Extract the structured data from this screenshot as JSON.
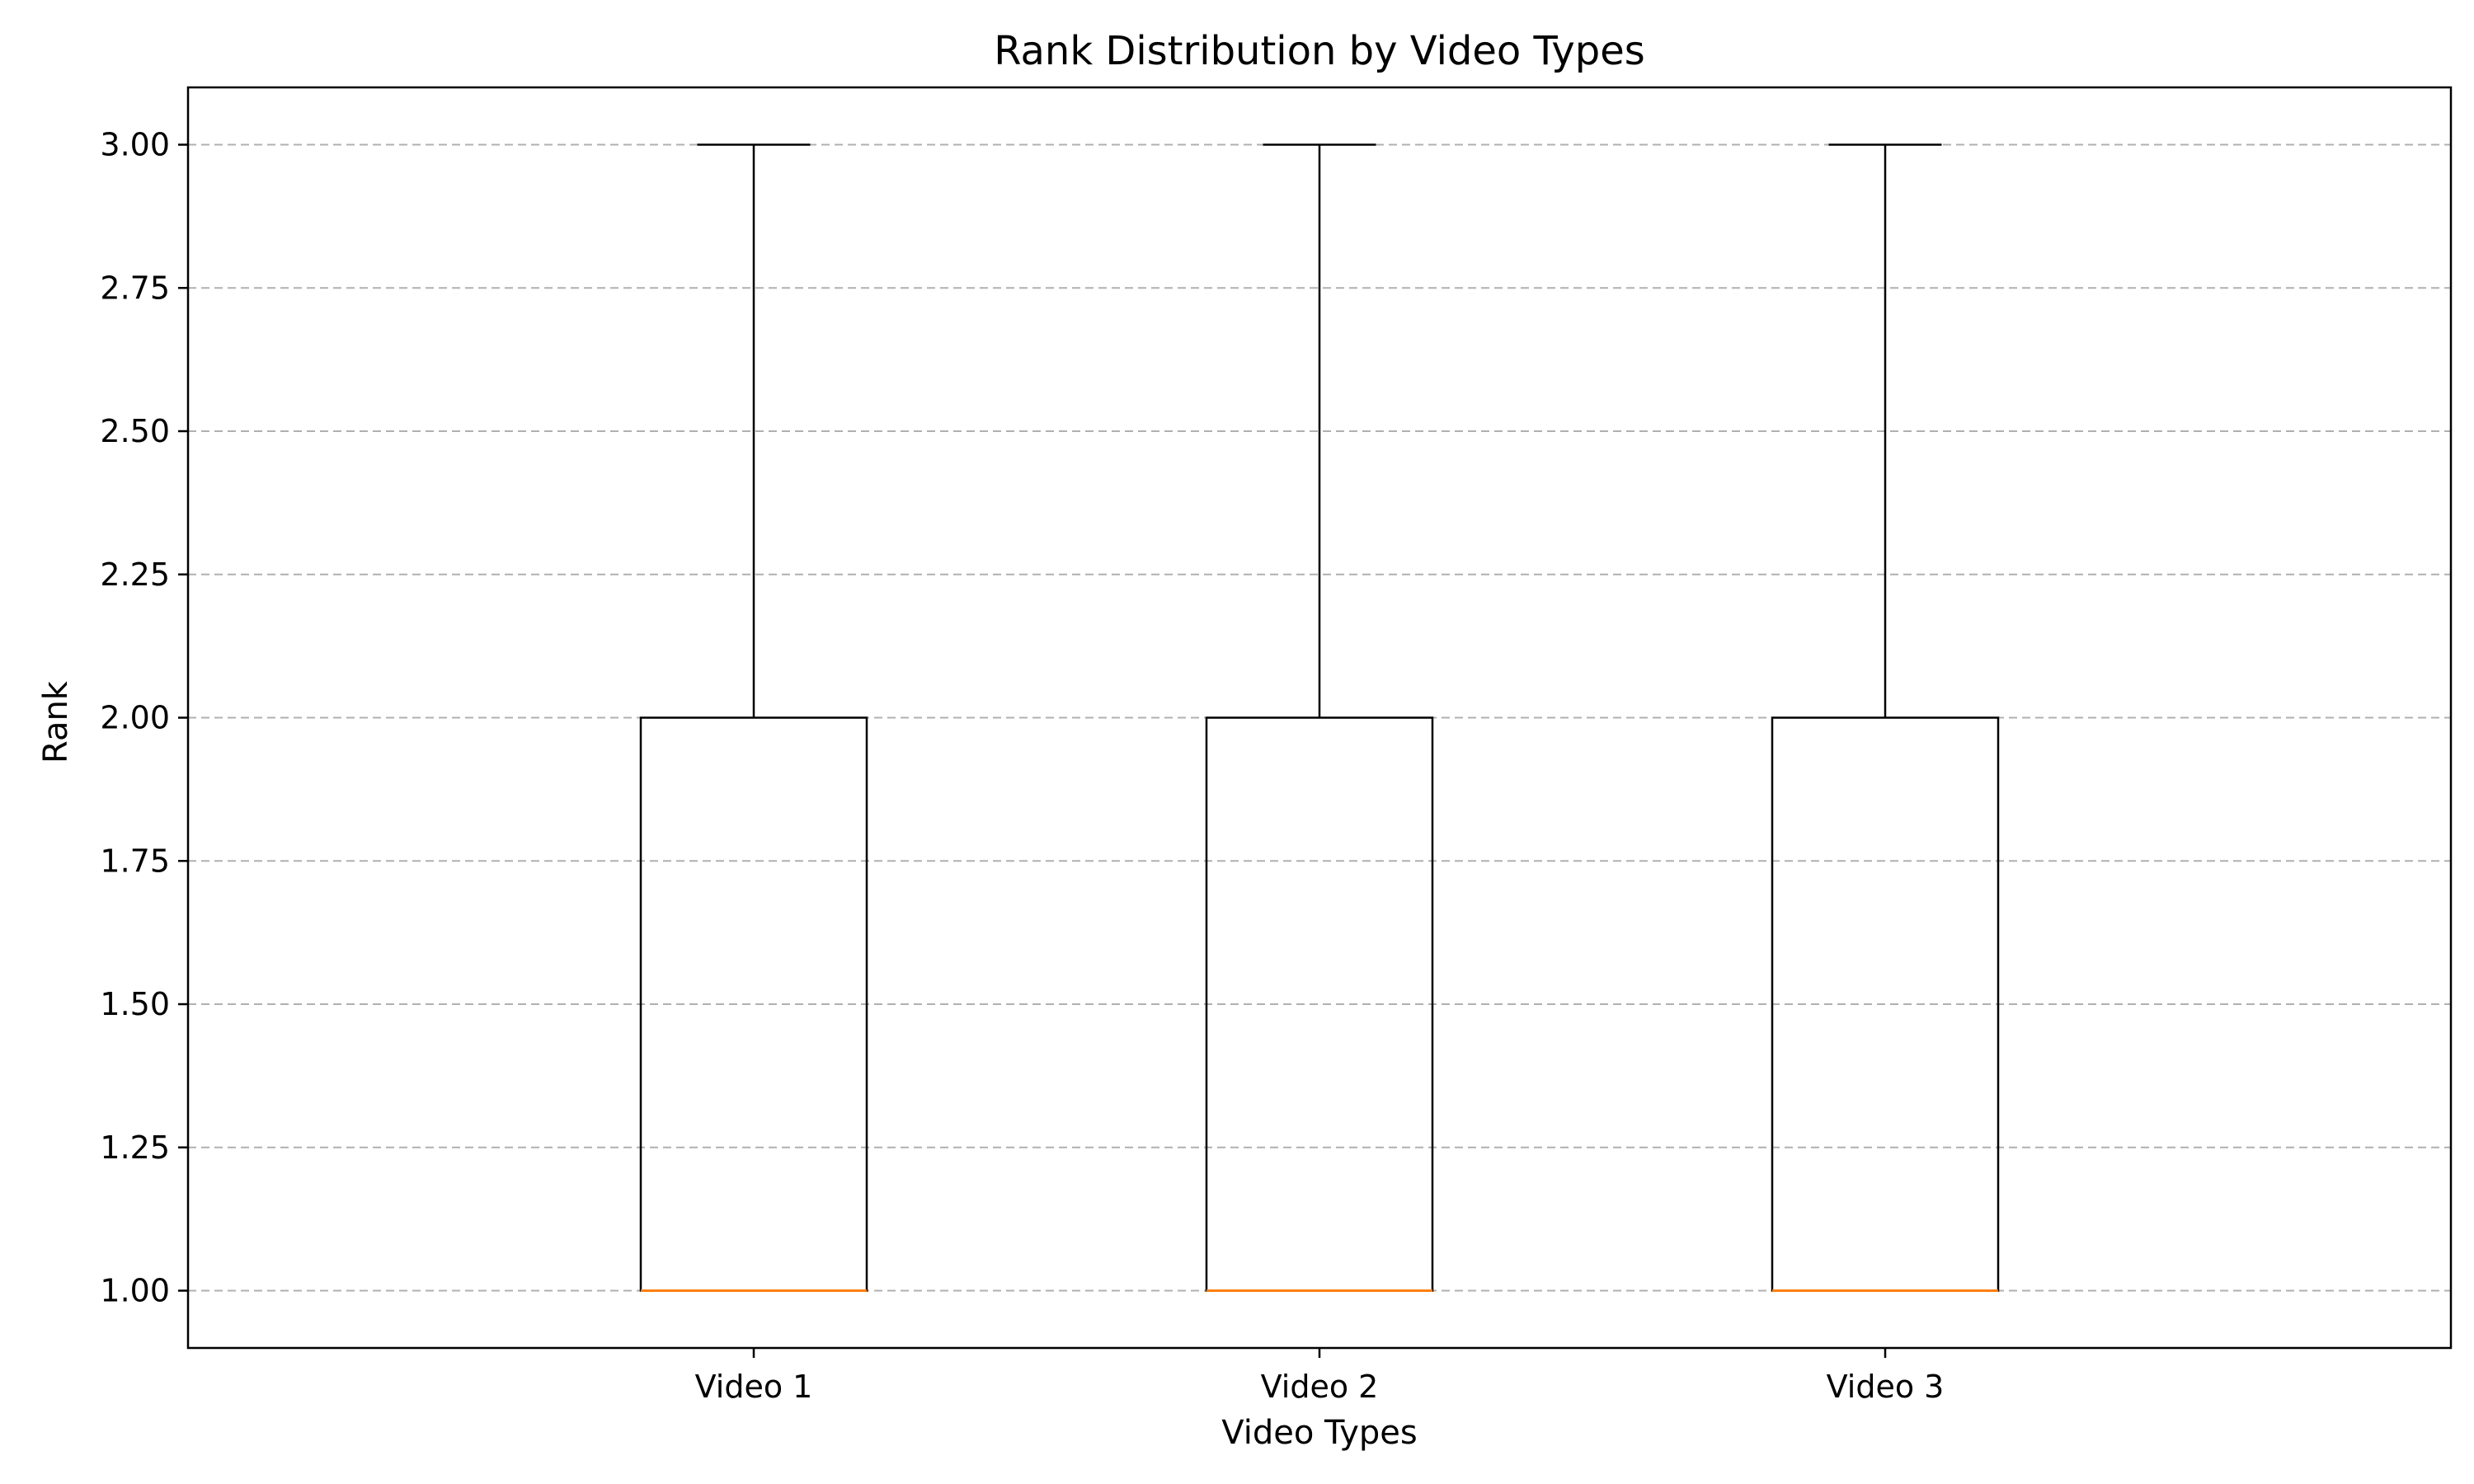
{
  "chart_data": {
    "type": "box",
    "title": "Rank Distribution by Video Types",
    "xlabel": "Video Types",
    "ylabel": "Rank",
    "ylim": [
      0.9,
      3.1
    ],
    "yticks": [
      "1.00",
      "1.25",
      "1.50",
      "1.75",
      "2.00",
      "2.25",
      "2.50",
      "2.75",
      "3.00"
    ],
    "ytick_values": [
      1.0,
      1.25,
      1.5,
      1.75,
      2.0,
      2.25,
      2.5,
      2.75,
      3.0
    ],
    "grid": "y-dashed",
    "categories": [
      "Video 1",
      "Video 2",
      "Video 3"
    ],
    "boxes": [
      {
        "label": "Video 1",
        "whisker_low": 1.0,
        "q1": 1.0,
        "median": 1.0,
        "q3": 2.0,
        "whisker_high": 3.0
      },
      {
        "label": "Video 2",
        "whisker_low": 1.0,
        "q1": 1.0,
        "median": 1.0,
        "q3": 2.0,
        "whisker_high": 3.0
      },
      {
        "label": "Video 3",
        "whisker_low": 1.0,
        "q1": 1.0,
        "median": 1.0,
        "q3": 2.0,
        "whisker_high": 3.0
      }
    ],
    "colors": {
      "box": "#000000",
      "median": "#ff7f0e",
      "grid": "#b0b0b0"
    }
  }
}
